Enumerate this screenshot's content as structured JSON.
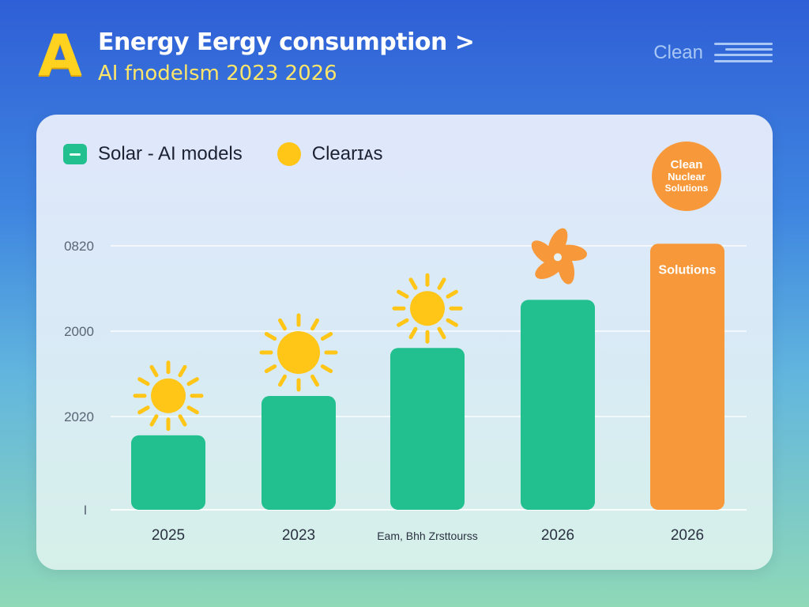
{
  "header": {
    "logo_letter": "A",
    "title_line1": "Energy Eergy consumption >",
    "title_line2": "AI fnodelsm 2023 2026",
    "right_label": "Clean",
    "menu_icon": "menu-lines-icon"
  },
  "legend": {
    "items": [
      {
        "label": "Solar - AI models",
        "icon": "green-square-icon",
        "color": "#22c08f"
      },
      {
        "label": "Clearɪᴀs",
        "icon": "yellow-circle-icon",
        "color": "#ffc517"
      }
    ]
  },
  "badge": {
    "line1": "Clean",
    "line2": "Nuclear",
    "line3": "Solutions"
  },
  "colors": {
    "bar_green": "#22c08f",
    "bar_orange": "#f7993a",
    "sun": "#ffc517",
    "fan": "#f7993a",
    "grid": "#ffffff",
    "axis_text": "#5a6475"
  },
  "chart_data": {
    "type": "bar",
    "title": "Energy Eergy consumption > AI fnodelsm 2023 2026",
    "xlabel": "",
    "ylabel": "",
    "y_tick_labels": [
      "0820",
      "2000",
      "2020",
      "I"
    ],
    "categories": [
      "2025",
      "2023",
      "Eam, Bhh Zrsttourss",
      "2026",
      "2026"
    ],
    "values": [
      930,
      1420,
      2020,
      2620,
      3320
    ],
    "ylim": [
      0,
      3600
    ],
    "bar_colors": [
      "#22c08f",
      "#22c08f",
      "#22c08f",
      "#22c08f",
      "#f7993a"
    ],
    "bar_icons": [
      "sun-icon",
      "sun-icon",
      "sun-icon",
      "fan-icon",
      ""
    ],
    "bar_labels": [
      "",
      "",
      "",
      "",
      "Solutions"
    ],
    "grid": true
  }
}
